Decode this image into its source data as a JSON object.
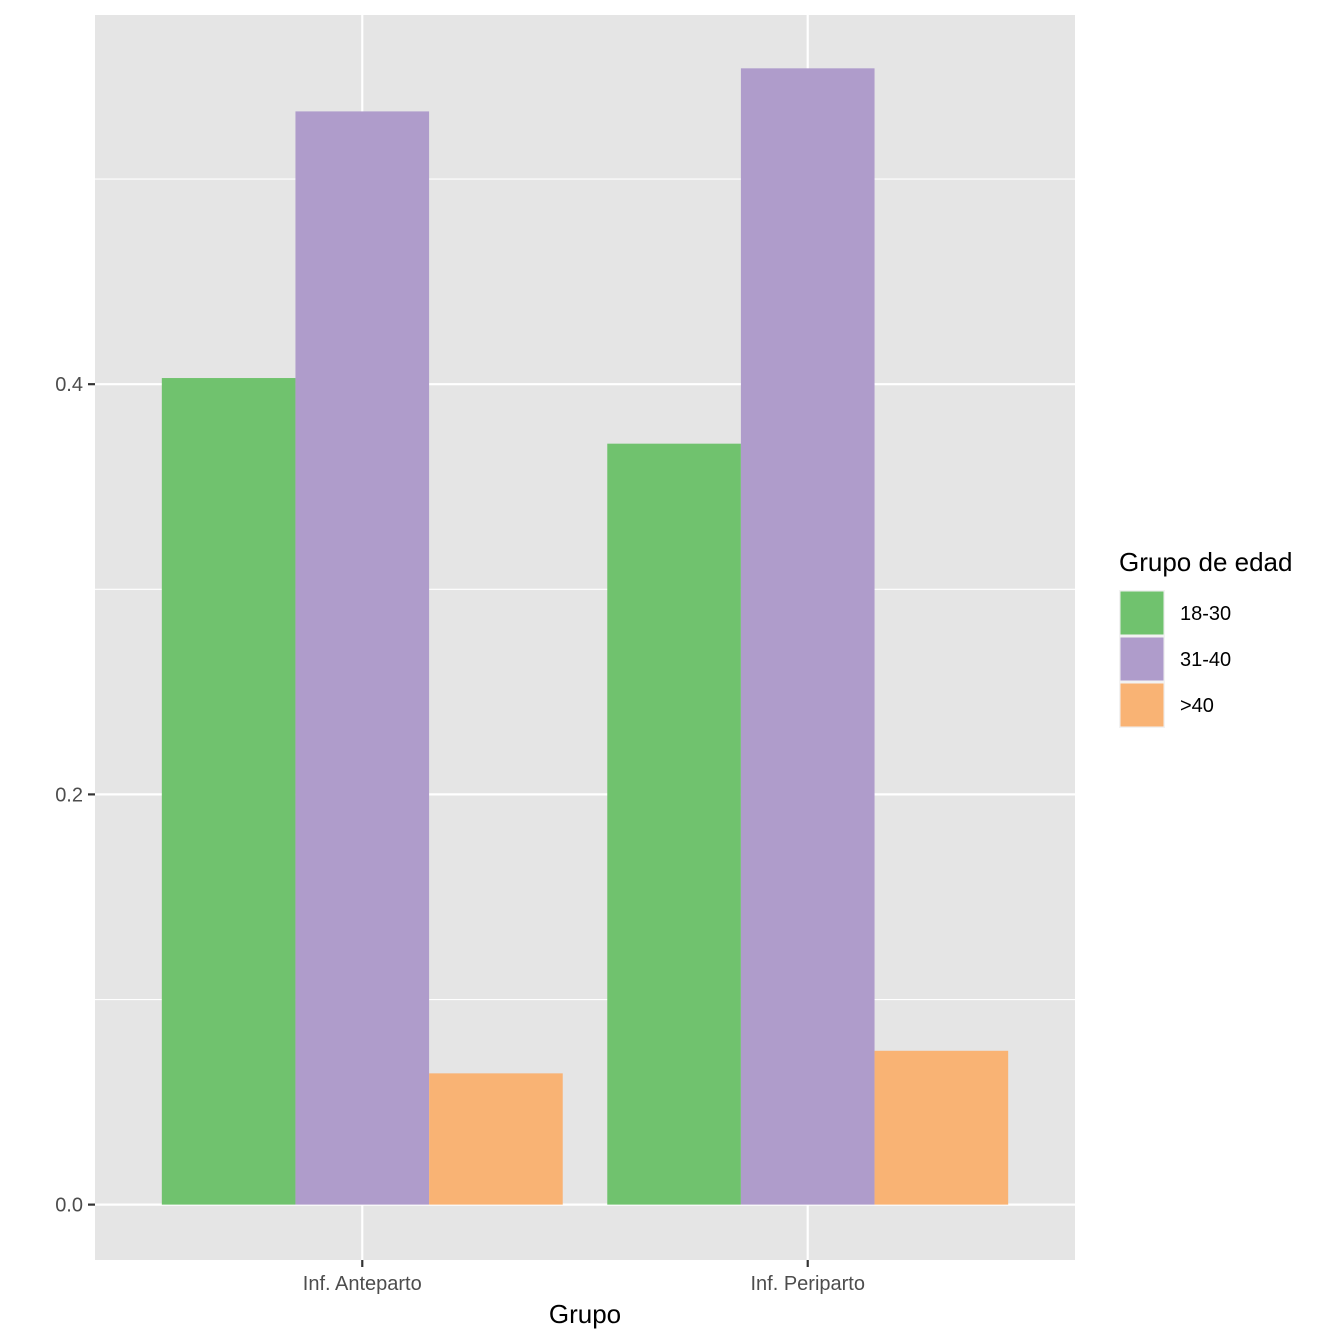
{
  "chart_data": {
    "type": "bar",
    "title": "",
    "xlabel": "Grupo",
    "ylabel": "",
    "categories": [
      "Inf. Anteparto",
      "Inf. Periparto"
    ],
    "series": [
      {
        "name": "18-30",
        "color": "#70c26e",
        "values": [
          0.403,
          0.371
        ]
      },
      {
        "name": "31-40",
        "color": "#af9ccb",
        "values": [
          0.533,
          0.554
        ]
      },
      {
        "name": ">40",
        "color": "#f9b374",
        "values": [
          0.064,
          0.075
        ]
      }
    ],
    "legend_title": "Grupo de edad",
    "legend_position": "right",
    "yticks": [
      {
        "value": 0.0,
        "label": "0.0"
      },
      {
        "value": 0.2,
        "label": "0.2"
      },
      {
        "value": 0.4,
        "label": "0.4"
      }
    ],
    "ylim": [
      -0.027,
      0.58
    ],
    "grid": true,
    "panel_background": "#e5e5e5",
    "grid_color": "#ffffff"
  }
}
